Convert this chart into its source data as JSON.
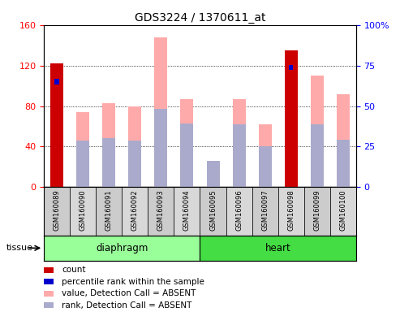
{
  "title": "GDS3224 / 1370611_at",
  "samples": [
    "GSM160089",
    "GSM160090",
    "GSM160091",
    "GSM160092",
    "GSM160093",
    "GSM160094",
    "GSM160095",
    "GSM160096",
    "GSM160097",
    "GSM160098",
    "GSM160099",
    "GSM160100"
  ],
  "count_values": [
    122,
    0,
    0,
    0,
    0,
    0,
    0,
    0,
    0,
    135,
    0,
    0
  ],
  "percentile_rank": [
    65,
    0,
    0,
    0,
    0,
    0,
    0,
    0,
    0,
    74,
    0,
    0
  ],
  "value_absent": [
    0,
    74,
    83,
    80,
    148,
    87,
    20,
    87,
    62,
    0,
    110,
    92
  ],
  "rank_absent": [
    0,
    46,
    48,
    46,
    77,
    63,
    26,
    62,
    40,
    0,
    62,
    47
  ],
  "ylim_left": [
    0,
    160
  ],
  "ylim_right": [
    0,
    100
  ],
  "yticks_left": [
    0,
    40,
    80,
    120,
    160
  ],
  "yticks_right": [
    0,
    25,
    50,
    75,
    100
  ],
  "color_count": "#cc0000",
  "color_percentile": "#0000cc",
  "color_value_absent": "#ffaaaa",
  "color_rank_absent": "#aaaacc",
  "color_group_diaphragm": "#99ff99",
  "color_group_heart": "#44dd44",
  "bar_width": 0.5,
  "legend_items": [
    {
      "color": "#cc0000",
      "label": "count"
    },
    {
      "color": "#0000cc",
      "label": "percentile rank within the sample"
    },
    {
      "color": "#ffaaaa",
      "label": "value, Detection Call = ABSENT"
    },
    {
      "color": "#aaaacc",
      "label": "rank, Detection Call = ABSENT"
    }
  ],
  "diaphragm_range": [
    0,
    5
  ],
  "heart_range": [
    6,
    11
  ]
}
